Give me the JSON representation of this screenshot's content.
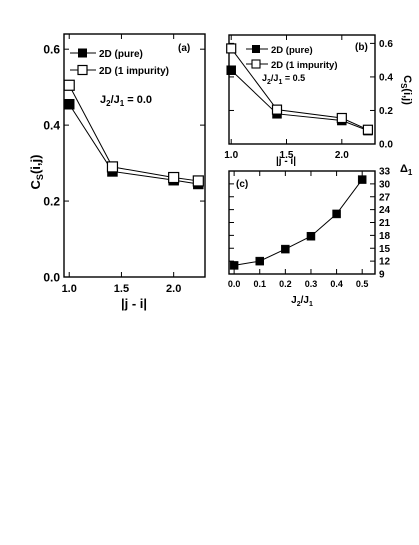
{
  "chart_data": [
    {
      "id": "a",
      "type": "line",
      "panel_label": "(a)",
      "annotation": "J",
      "annotation_sub2": "2",
      "annotation_mid": "/J",
      "annotation_sub1": "1",
      "annotation_tail": " = 0.0",
      "ylabel_main": "C",
      "ylabel_sub": "S",
      "ylabel_tail": "(i,j)",
      "xlabel": "|j - i|",
      "xlim": [
        0.95,
        2.3
      ],
      "ylim": [
        0.0,
        0.64
      ],
      "x_ticks": [
        "1.0",
        "1.5",
        "2.0"
      ],
      "x_tick_values": [
        1.0,
        1.5,
        2.0
      ],
      "y_ticks": [
        "0.0",
        "0.2",
        "0.4",
        "0.6"
      ],
      "y_tick_values": [
        0.0,
        0.2,
        0.4,
        0.6
      ],
      "series": [
        {
          "name": "2D (pure)",
          "marker": "filled-square",
          "x": [
            1.0,
            1.414,
            2.0,
            2.236
          ],
          "y": [
            0.455,
            0.278,
            0.255,
            0.245
          ]
        },
        {
          "name": "2D (1 impurity)",
          "marker": "open-square",
          "x": [
            1.0,
            1.414,
            2.0,
            2.236
          ],
          "y": [
            0.505,
            0.29,
            0.262,
            0.253
          ]
        }
      ]
    },
    {
      "id": "b",
      "type": "line",
      "panel_label": "(b)",
      "annotation": "J",
      "annotation_sub2": "2",
      "annotation_mid": "/J",
      "annotation_sub1": "1",
      "annotation_tail": " = 0.5",
      "ylabel_main": "C",
      "ylabel_sub": "S",
      "ylabel_tail": "(i,j)",
      "xlabel": "|j - i|",
      "xlim": [
        0.98,
        2.3
      ],
      "ylim": [
        0.0,
        0.65
      ],
      "x_ticks": [
        "1.0",
        "1.5",
        "2.0"
      ],
      "x_tick_values": [
        1.0,
        1.5,
        2.0
      ],
      "y_ticks": [
        "0.0",
        "0.2",
        "0.4",
        "0.6"
      ],
      "y_tick_values": [
        0.0,
        0.2,
        0.4,
        0.6
      ],
      "series": [
        {
          "name": "2D (pure)",
          "marker": "filled-square",
          "x": [
            1.0,
            1.414,
            2.0,
            2.236
          ],
          "y": [
            0.44,
            0.18,
            0.14,
            0.08
          ]
        },
        {
          "name": "2D (1 impurity)",
          "marker": "open-square",
          "x": [
            1.0,
            1.414,
            2.0,
            2.236
          ],
          "y": [
            0.57,
            0.205,
            0.155,
            0.085
          ]
        }
      ]
    },
    {
      "id": "c",
      "type": "line",
      "panel_label": "(c)",
      "ylabel_main": "Δ",
      "ylabel_sub": "1",
      "xlabel_main": "J",
      "xlabel_sub2": "2",
      "xlabel_mid": "/J",
      "xlabel_sub1": "1",
      "xlim": [
        -0.02,
        0.55
      ],
      "ylim": [
        9,
        33
      ],
      "x_ticks": [
        "0.0",
        "0.1",
        "0.2",
        "0.3",
        "0.4",
        "0.5"
      ],
      "x_tick_values": [
        0.0,
        0.1,
        0.2,
        0.3,
        0.4,
        0.5
      ],
      "y_ticks": [
        "9",
        "12",
        "15",
        "18",
        "21",
        "24",
        "27",
        "30",
        "33"
      ],
      "y_tick_values": [
        9,
        12,
        15,
        18,
        21,
        24,
        27,
        30,
        33
      ],
      "series": [
        {
          "marker": "filled-square",
          "x": [
            0.0,
            0.1,
            0.2,
            0.3,
            0.4,
            0.5
          ],
          "y": [
            11.0,
            12.0,
            14.8,
            17.8,
            23.0,
            31.0
          ]
        }
      ]
    }
  ]
}
